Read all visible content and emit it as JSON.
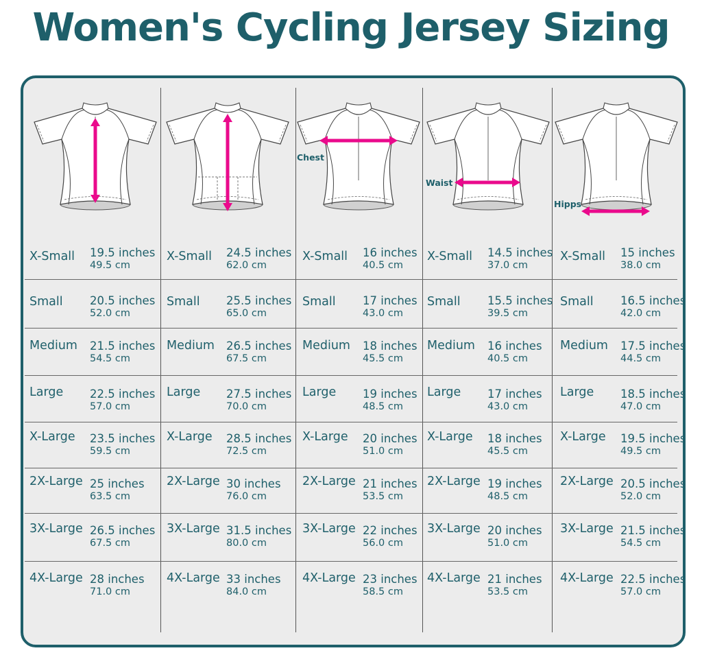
{
  "title": "Women's Cycling  Jersey Sizing",
  "colors": {
    "accent": "#1e5f6a",
    "arrow": "#ea0a8c",
    "panel": "#ececec"
  },
  "columns": [
    {
      "measurement_label": "",
      "arrow": "vertical-front",
      "rows": [
        {
          "size": "X-Small",
          "inches": "19.5 inches",
          "cm": "49.5 cm"
        },
        {
          "size": "Small",
          "inches": "20.5 inches",
          "cm": "52.0 cm"
        },
        {
          "size": "Medium",
          "inches": "21.5 inches",
          "cm": "54.5 cm"
        },
        {
          "size": "Large",
          "inches": "22.5 inches",
          "cm": "57.0 cm"
        },
        {
          "size": "X-Large",
          "inches": "23.5 inches",
          "cm": "59.5 cm"
        },
        {
          "size": "2X-Large",
          "inches": "25 inches",
          "cm": "63.5 cm"
        },
        {
          "size": "3X-Large",
          "inches": "26.5 inches",
          "cm": "67.5 cm"
        },
        {
          "size": "4X-Large",
          "inches": "28 inches",
          "cm": "71.0 cm"
        }
      ]
    },
    {
      "measurement_label": "",
      "arrow": "vertical-back",
      "rows": [
        {
          "size": "X-Small",
          "inches": "24.5 inches",
          "cm": "62.0 cm"
        },
        {
          "size": "Small",
          "inches": "25.5 inches",
          "cm": "65.0 cm"
        },
        {
          "size": "Medium",
          "inches": "26.5 inches",
          "cm": "67.5 cm"
        },
        {
          "size": "Large",
          "inches": "27.5 inches",
          "cm": "70.0 cm"
        },
        {
          "size": "X-Large",
          "inches": "28.5 inches",
          "cm": "72.5 cm"
        },
        {
          "size": "2X-Large",
          "inches": "30 inches",
          "cm": "76.0 cm"
        },
        {
          "size": "3X-Large",
          "inches": "31.5 inches",
          "cm": "80.0 cm"
        },
        {
          "size": "4X-Large",
          "inches": "33 inches",
          "cm": "84.0 cm"
        }
      ]
    },
    {
      "measurement_label": "Chest",
      "arrow": "chest",
      "rows": [
        {
          "size": "X-Small",
          "inches": "16 inches",
          "cm": "40.5 cm"
        },
        {
          "size": "Small",
          "inches": "17 inches",
          "cm": "43.0 cm"
        },
        {
          "size": "Medium",
          "inches": "18 inches",
          "cm": "45.5 cm"
        },
        {
          "size": "Large",
          "inches": "19 inches",
          "cm": "48.5 cm"
        },
        {
          "size": "X-Large",
          "inches": "20 inches",
          "cm": "51.0 cm"
        },
        {
          "size": "2X-Large",
          "inches": "21 inches",
          "cm": "53.5 cm"
        },
        {
          "size": "3X-Large",
          "inches": "22 inches",
          "cm": "56.0 cm"
        },
        {
          "size": "4X-Large",
          "inches": "23 inches",
          "cm": "58.5 cm"
        }
      ]
    },
    {
      "measurement_label": "Waist",
      "arrow": "waist",
      "rows": [
        {
          "size": "X-Small",
          "inches": "14.5 inches",
          "cm": "37.0 cm"
        },
        {
          "size": "Small",
          "inches": "15.5 inches",
          "cm": "39.5 cm"
        },
        {
          "size": "Medium",
          "inches": "16 inches",
          "cm": "40.5 cm"
        },
        {
          "size": "Large",
          "inches": "17 inches",
          "cm": "43.0 cm"
        },
        {
          "size": "X-Large",
          "inches": "18 inches",
          "cm": "45.5 cm"
        },
        {
          "size": "2X-Large",
          "inches": "19 inches",
          "cm": "48.5 cm"
        },
        {
          "size": "3X-Large",
          "inches": "20 inches",
          "cm": "51.0 cm"
        },
        {
          "size": "4X-Large",
          "inches": "21 inches",
          "cm": "53.5 cm"
        }
      ]
    },
    {
      "measurement_label": "Hipps",
      "arrow": "hips",
      "rows": [
        {
          "size": "X-Small",
          "inches": "15 inches",
          "cm": "38.0 cm"
        },
        {
          "size": "Small",
          "inches": "16.5 inches",
          "cm": "42.0 cm"
        },
        {
          "size": "Medium",
          "inches": "17.5 inches",
          "cm": "44.5 cm"
        },
        {
          "size": "Large",
          "inches": "18.5 inches",
          "cm": "47.0 cm"
        },
        {
          "size": "X-Large",
          "inches": "19.5 inches",
          "cm": "49.5 cm"
        },
        {
          "size": "2X-Large",
          "inches": "20.5 inches",
          "cm": "52.0 cm"
        },
        {
          "size": "3X-Large",
          "inches": "21.5 inches",
          "cm": "54.5 cm"
        },
        {
          "size": "4X-Large",
          "inches": "22.5 inches",
          "cm": "57.0 cm"
        }
      ]
    }
  ]
}
